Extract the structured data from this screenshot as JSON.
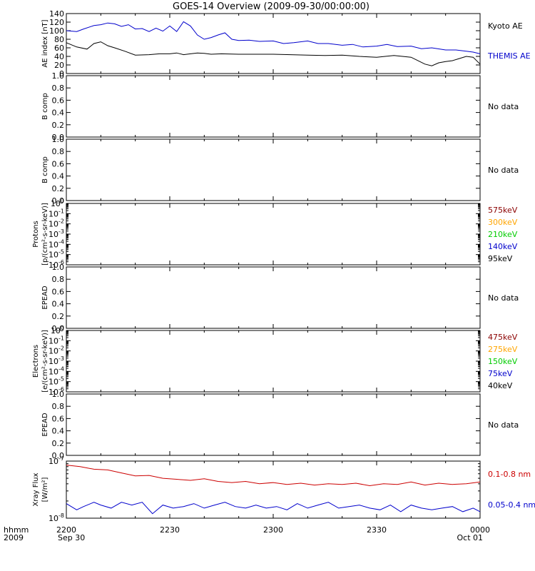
{
  "title": "GOES-14 Overview (2009-09-30/00:00:00)",
  "colors": {
    "axis": "#000000",
    "kyoto": "#000000",
    "themis": "#0000cc",
    "red": "#cc0000",
    "blue": "#0000cc",
    "e575": "#8b0000",
    "e300": "#ffa500",
    "e210": "#00cc00",
    "e140": "#0000cc",
    "e95": "#000000"
  },
  "time_axis": {
    "ticks": [
      "2200",
      "2230",
      "2300",
      "2330",
      "0000"
    ],
    "ticks_sub": [
      "Sep 30",
      "",
      "",
      "",
      "Oct 01"
    ],
    "row_label": "hhmm",
    "row_label_sub": "2009"
  },
  "chart_data": [
    {
      "type": "line",
      "ylabel": "AE index [nT]",
      "ylim": [
        0,
        140
      ],
      "yticks": [
        "0",
        "20",
        "40",
        "60",
        "80",
        "100",
        "120",
        "140"
      ],
      "x_range": [
        "22:00",
        "00:00"
      ],
      "series": [
        {
          "name": "Kyoto AE",
          "x_minutes": [
            0,
            3,
            6,
            8,
            10,
            12,
            14,
            17,
            20,
            24,
            27,
            30,
            32,
            34,
            36,
            38,
            40,
            42,
            45,
            50,
            55,
            60,
            65,
            70,
            75,
            80,
            85,
            90,
            95,
            100,
            104,
            106,
            108,
            110,
            112,
            114,
            116,
            118,
            120
          ],
          "values": [
            72,
            62,
            57,
            70,
            74,
            65,
            60,
            52,
            43,
            44,
            46,
            46,
            48,
            44,
            46,
            48,
            47,
            45,
            46,
            45,
            45,
            45,
            44,
            43,
            42,
            43,
            40,
            38,
            42,
            38,
            22,
            18,
            25,
            28,
            30,
            35,
            40,
            38,
            22
          ]
        },
        {
          "name": "THEMIS AE",
          "x_minutes": [
            0,
            3,
            5,
            8,
            10,
            12,
            14,
            16,
            18,
            20,
            22,
            24,
            26,
            28,
            30,
            32,
            34,
            36,
            38,
            40,
            42,
            44,
            46,
            48,
            50,
            53,
            56,
            60,
            63,
            66,
            70,
            73,
            76,
            80,
            83,
            86,
            90,
            93,
            96,
            100,
            103,
            106,
            110,
            113,
            116,
            118,
            120
          ],
          "values": [
            100,
            98,
            104,
            112,
            114,
            118,
            116,
            110,
            114,
            104,
            105,
            98,
            106,
            99,
            111,
            98,
            121,
            111,
            90,
            80,
            84,
            90,
            95,
            80,
            77,
            78,
            75,
            76,
            70,
            72,
            76,
            70,
            70,
            66,
            68,
            62,
            64,
            68,
            63,
            64,
            58,
            60,
            55,
            55,
            52,
            50,
            46
          ]
        }
      ],
      "legend": [
        "Kyoto AE",
        "THEMIS AE"
      ]
    },
    {
      "type": "line",
      "ylabel": "B comp",
      "ylim": [
        0,
        1
      ],
      "yticks": [
        "0.0",
        "0.2",
        "0.4",
        "0.6",
        "0.8",
        "1.0"
      ],
      "note": "No data"
    },
    {
      "type": "line",
      "ylabel": "B comp",
      "ylim": [
        0,
        1
      ],
      "yticks": [
        "0.0",
        "0.2",
        "0.4",
        "0.6",
        "0.8",
        "1.0"
      ],
      "note": "No data"
    },
    {
      "type": "line",
      "ylabel": "Protons",
      "ylabel2": "[p/(cm²-s-sr-keV)]",
      "scale": "log",
      "ylim": [
        1e-06,
        1
      ],
      "legend": [
        "575keV",
        "300keV",
        "210keV",
        "140keV",
        "95keV"
      ]
    },
    {
      "type": "line",
      "ylabel": "EPEAD",
      "ylim": [
        0,
        1
      ],
      "yticks": [
        "0.0",
        "0.2",
        "0.4",
        "0.6",
        "0.8",
        "1.0"
      ],
      "note": "No data"
    },
    {
      "type": "line",
      "ylabel": "Electrons",
      "ylabel2": "[e/(cm²-s-sr-keV)]",
      "scale": "log",
      "ylim": [
        1e-06,
        1
      ],
      "legend": [
        "475keV",
        "275keV",
        "150keV",
        "75keV",
        "40keV"
      ]
    },
    {
      "type": "line",
      "ylabel": "EPEAD",
      "ylim": [
        0,
        1
      ],
      "yticks": [
        "0.0",
        "0.2",
        "0.4",
        "0.6",
        "0.8",
        "1.0"
      ],
      "note": "No data"
    },
    {
      "type": "line",
      "ylabel": "Xray Flux",
      "ylabel2": "[W/m²]",
      "scale": "log",
      "ylim": [
        1e-08,
        1e-07
      ],
      "series": [
        {
          "name": "0.1-0.8 nm",
          "x_minutes": [
            0,
            4,
            8,
            12,
            16,
            20,
            24,
            28,
            32,
            36,
            40,
            44,
            48,
            52,
            56,
            60,
            64,
            68,
            72,
            76,
            80,
            84,
            88,
            92,
            96,
            100,
            104,
            108,
            112,
            116,
            120
          ],
          "values": [
            8.5e-08,
            8e-08,
            7.2e-08,
            7e-08,
            6.2e-08,
            5.5e-08,
            5.6e-08,
            5e-08,
            4.8e-08,
            4.6e-08,
            4.9e-08,
            4.4e-08,
            4.2e-08,
            4.4e-08,
            4e-08,
            4.2e-08,
            3.9e-08,
            4.1e-08,
            3.8e-08,
            4e-08,
            3.9e-08,
            4.1e-08,
            3.7e-08,
            4e-08,
            3.9e-08,
            4.3e-08,
            3.8e-08,
            4.1e-08,
            3.9e-08,
            4e-08,
            4.3e-08
          ]
        },
        {
          "name": "0.05-0.4 nm",
          "x_minutes": [
            0,
            3,
            5,
            8,
            10,
            13,
            16,
            19,
            22,
            25,
            28,
            31,
            34,
            37,
            40,
            43,
            46,
            49,
            52,
            55,
            58,
            61,
            64,
            67,
            70,
            73,
            76,
            79,
            82,
            85,
            88,
            91,
            94,
            97,
            100,
            103,
            106,
            109,
            112,
            115,
            118,
            120
          ],
          "values": [
            1.8e-08,
            1.4e-08,
            1.6e-08,
            1.9e-08,
            1.7e-08,
            1.5e-08,
            1.9e-08,
            1.7e-08,
            1.9e-08,
            1.2e-08,
            1.7e-08,
            1.5e-08,
            1.6e-08,
            1.8e-08,
            1.5e-08,
            1.7e-08,
            1.9e-08,
            1.6e-08,
            1.5e-08,
            1.7e-08,
            1.5e-08,
            1.6e-08,
            1.4e-08,
            1.8e-08,
            1.5e-08,
            1.7e-08,
            1.9e-08,
            1.5e-08,
            1.6e-08,
            1.7e-08,
            1.5e-08,
            1.4e-08,
            1.7e-08,
            1.3e-08,
            1.7e-08,
            1.5e-08,
            1.4e-08,
            1.5e-08,
            1.6e-08,
            1.3e-08,
            1.5e-08,
            1.3e-08
          ]
        }
      ],
      "legend": [
        "0.1-0.8 nm",
        "0.05-0.4 nm"
      ]
    }
  ]
}
